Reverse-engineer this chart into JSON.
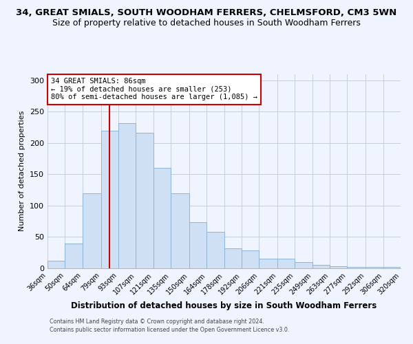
{
  "title": "34, GREAT SMIALS, SOUTH WOODHAM FERRERS, CHELMSFORD, CM3 5WN",
  "subtitle": "Size of property relative to detached houses in South Woodham Ferrers",
  "xlabel": "Distribution of detached houses by size in South Woodham Ferrers",
  "ylabel": "Number of detached properties",
  "bin_labels": [
    "36sqm",
    "50sqm",
    "64sqm",
    "79sqm",
    "93sqm",
    "107sqm",
    "121sqm",
    "135sqm",
    "150sqm",
    "164sqm",
    "178sqm",
    "192sqm",
    "206sqm",
    "221sqm",
    "235sqm",
    "249sqm",
    "263sqm",
    "277sqm",
    "292sqm",
    "306sqm",
    "320sqm"
  ],
  "bar_heights": [
    12,
    40,
    120,
    220,
    232,
    216,
    160,
    120,
    73,
    58,
    32,
    28,
    15,
    15,
    10,
    5,
    3,
    2,
    2,
    2
  ],
  "bar_color": "#cfe0f5",
  "bar_edge_color": "#8ab4d8",
  "ylim": [
    0,
    310
  ],
  "yticks": [
    0,
    50,
    100,
    150,
    200,
    250,
    300
  ],
  "property_line_x": 86,
  "annotation_line1": "34 GREAT SMIALS: 86sqm",
  "annotation_line2": "← 19% of detached houses are smaller (253)",
  "annotation_line3": "80% of semi-detached houses are larger (1,085) →",
  "annotation_box_color": "#ffffff",
  "annotation_box_edge_color": "#cc0000",
  "vline_color": "#cc0000",
  "footer1": "Contains HM Land Registry data © Crown copyright and database right 2024.",
  "footer2": "Contains public sector information licensed under the Open Government Licence v3.0.",
  "bin_edges": [
    36,
    50,
    64,
    79,
    93,
    107,
    121,
    135,
    150,
    164,
    178,
    192,
    206,
    221,
    235,
    249,
    263,
    277,
    292,
    306,
    320
  ],
  "bg_color": "#f0f4ff",
  "title_fontsize": 9.5,
  "subtitle_fontsize": 9,
  "xlabel_fontsize": 8.5,
  "ylabel_fontsize": 8,
  "tick_fontsize": 7,
  "footer_fontsize": 5.8
}
